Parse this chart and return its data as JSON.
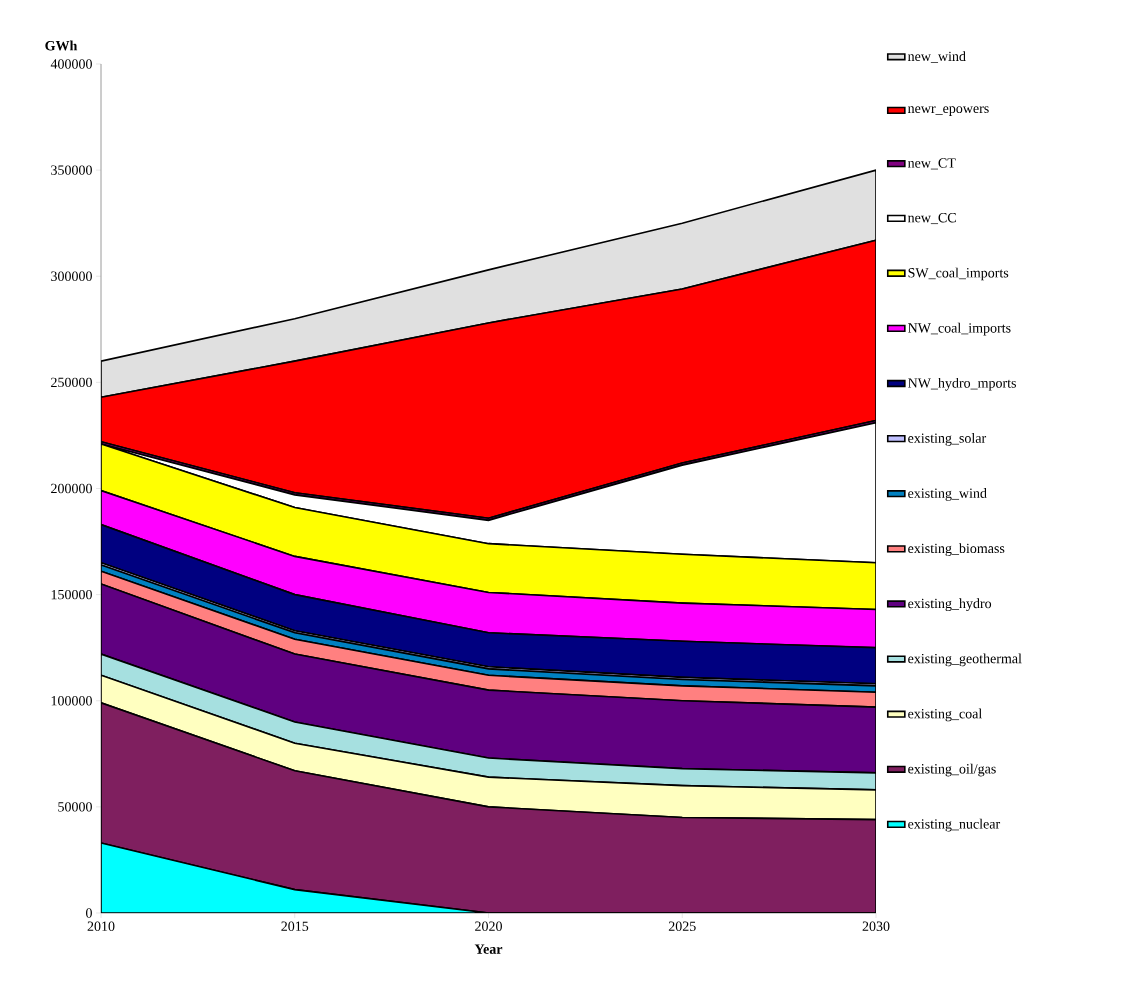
{
  "chart_data": {
    "type": "area",
    "stacked": true,
    "xlabel": "Year",
    "ylabel": "GWh",
    "x": [
      2010,
      2015,
      2020,
      2025,
      2030
    ],
    "xlim": [
      2010,
      2030
    ],
    "xticks": [
      2010,
      2015,
      2020,
      2025,
      2030
    ],
    "ylim": [
      0,
      400000
    ],
    "yticks": [
      0,
      50000,
      100000,
      150000,
      200000,
      250000,
      300000,
      350000,
      400000
    ],
    "grid": false,
    "legend": "right",
    "series": [
      {
        "name": "existing_nuclear",
        "color": "#00ffff",
        "values": [
          33000,
          11000,
          0,
          0,
          0
        ]
      },
      {
        "name": "existing_oil/gas",
        "color": "#7f1f5f",
        "values": [
          66000,
          56000,
          50000,
          45000,
          44000
        ]
      },
      {
        "name": "existing_coal",
        "color": "#ffffc0",
        "values": [
          13000,
          13000,
          14000,
          15000,
          14000
        ]
      },
      {
        "name": "existing_geothermal",
        "color": "#a6e0e0",
        "values": [
          10000,
          10000,
          9000,
          8000,
          8000
        ]
      },
      {
        "name": "existing_hydro",
        "color": "#5f0080",
        "values": [
          33000,
          32000,
          32000,
          32000,
          31000
        ]
      },
      {
        "name": "existing_biomass",
        "color": "#ff8080",
        "values": [
          6000,
          7000,
          7000,
          7000,
          7000
        ]
      },
      {
        "name": "existing_wind",
        "color": "#0080c0",
        "values": [
          3000,
          3000,
          3000,
          3000,
          3000
        ]
      },
      {
        "name": "existing_solar",
        "color": "#c0c0ff",
        "values": [
          1000,
          1000,
          1000,
          1000,
          1000
        ]
      },
      {
        "name": "NW_hydro_mports",
        "color": "#000080",
        "values": [
          18000,
          17000,
          16000,
          17000,
          17000
        ]
      },
      {
        "name": "NW_coal_imports",
        "color": "#ff00ff",
        "values": [
          16000,
          18000,
          19000,
          18000,
          18000
        ]
      },
      {
        "name": "SW_coal_imports",
        "color": "#ffff00",
        "values": [
          22000,
          23000,
          23000,
          23000,
          22000
        ]
      },
      {
        "name": "new_CC",
        "color": "#ffffff",
        "values": [
          0,
          6000,
          11000,
          42000,
          66000
        ]
      },
      {
        "name": "new_CT",
        "color": "#800080",
        "values": [
          1000,
          1000,
          1000,
          1000,
          1000
        ]
      },
      {
        "name": "newr_epowers",
        "color": "#ff0000",
        "values": [
          21000,
          62000,
          92000,
          82000,
          85000
        ]
      },
      {
        "name": "new_wind",
        "color": "#e0e0e0",
        "values": [
          17000,
          20000,
          25000,
          31000,
          33000
        ]
      }
    ]
  }
}
